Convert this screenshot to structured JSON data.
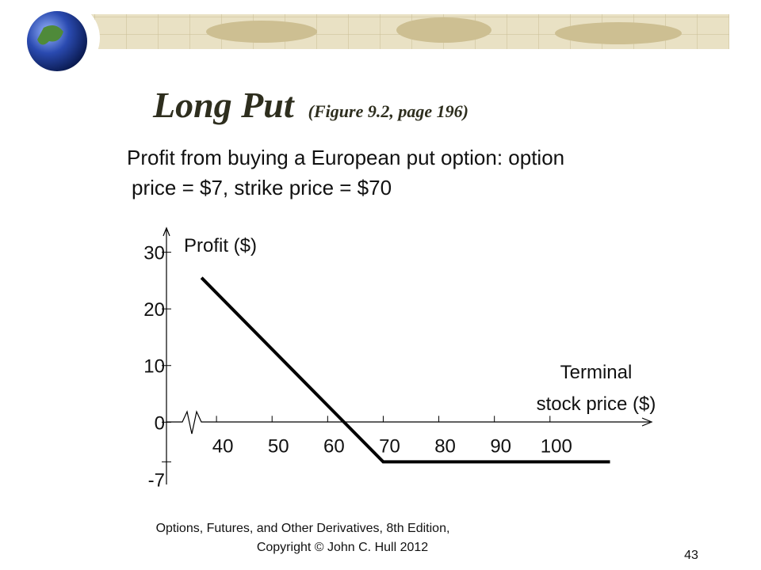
{
  "slide": {
    "title": "Long Put",
    "title_note": "(Figure 9.2, page 196)",
    "subtitle": [
      "Profit from buying a European put option: option",
      "price = $7, strike price = $70"
    ],
    "footer": [
      "Options, Futures, and Other Derivatives, 8th Edition,",
      "Copyright © John C. Hull 2012"
    ],
    "page_number": "43"
  },
  "chart_data": {
    "type": "line",
    "y_label": "Profit ($)",
    "x_label": [
      "Terminal",
      "stock price ($)"
    ],
    "series": [
      {
        "color": "#000000",
        "x": [
          37.3,
          70,
          110.8
        ],
        "values": [
          25.5,
          -7,
          -7
        ]
      }
    ],
    "xlim": [
      31,
      118
    ],
    "ylim": [
      -11,
      34
    ],
    "xticks": [
      40,
      50,
      60,
      70,
      80,
      90,
      100
    ],
    "yticks": [
      -7,
      0,
      10,
      20,
      30
    ]
  }
}
